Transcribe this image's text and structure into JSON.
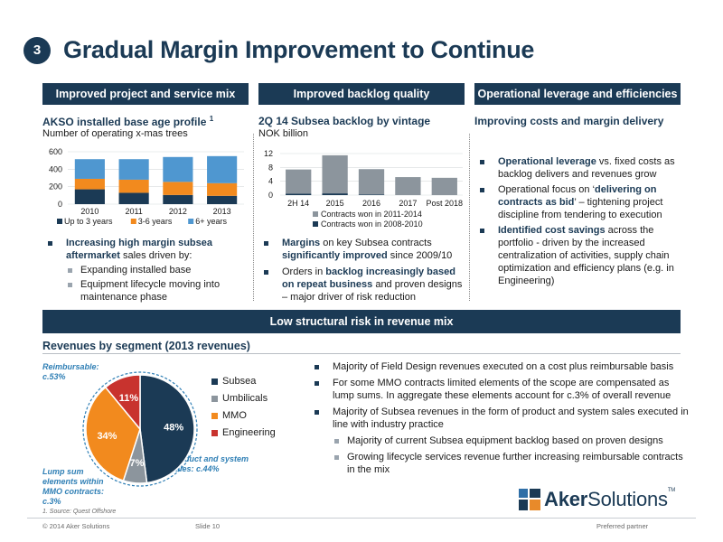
{
  "slide": {
    "number": "3",
    "title": "Gradual Margin Improvement to Continue",
    "slide_label": "Slide 10",
    "copyright": "© 2014 Aker Solutions",
    "tagline": "Preferred partner",
    "footnote": "1.     Source: Quest Offshore",
    "logo": {
      "bold": "Aker",
      "rest": "Solutions",
      "tm": "TM"
    }
  },
  "colors": {
    "navy": "#1b3a55",
    "grey": "#8c959d",
    "orange": "#f28a1e",
    "red": "#c8332e",
    "blue_text": "#2f7fb5"
  },
  "col1": {
    "header": "Improved project and service mix",
    "title": "AKSO installed base age profile",
    "title_sup": "1",
    "subtitle": "Number of operating x-mas trees",
    "bullets": [
      {
        "hl": "Increasing high margin subsea aftermarket",
        "text": " sales driven by:"
      }
    ],
    "sub_bullets": [
      "Expanding installed base",
      "Equipment lifecycle moving into maintenance phase"
    ]
  },
  "col2": {
    "header": "Improved backlog quality",
    "title": "2Q 14 Subsea backlog by vintage",
    "subtitle": "NOK billion",
    "bullet1_hl": "Margins",
    "bullet1_a": " on key Subsea contracts ",
    "bullet1_hl2": "significantly improved",
    "bullet1_b": " since 2009/10",
    "bullet2_a": "Orders in ",
    "bullet2_hl": "backlog increasingly based on repeat business",
    "bullet2_b": " and proven designs – major driver of risk reduction"
  },
  "col3": {
    "header": "Operational leverage and efficiencies",
    "title": "Improving costs and margin delivery",
    "b1_hl": "Operational leverage",
    "b1_text": " vs. fixed costs as backlog delivers and revenues grow",
    "b2_a": "Operational focus on ‘",
    "b2_hl": "delivering on contracts as bid",
    "b2_b": "’ – tightening project discipline from tendering to execution",
    "b3_hl": "Identified cost savings",
    "b3_text": " across the portfolio - driven by the increased centralization of activities, supply chain optimization and efficiency plans (e.g. in Engineering)"
  },
  "section2": {
    "header": "Low structural risk in revenue mix",
    "title": "Revenues by segment (2013 revenues)",
    "ann_reimb": "Reimbursable: c.53%",
    "ann_product": "Product and system sales: c.44%",
    "ann_lump": "Lump sum elements within MMO contracts: c.3%",
    "bullets": [
      "Majority of Field Design revenues executed on a cost plus reimbursable basis",
      "For some MMO contracts limited elements of the scope are compensated as lump sums. In aggregate these elements account for c.3% of overall revenue",
      "Majority of Subsea revenues in the form of product and system sales executed in line with industry practice"
    ],
    "sub_bullets": [
      "Majority of current Subsea equipment backlog based on proven designs",
      "Growing lifecycle services revenue further increasing reimbursable contracts in the mix"
    ]
  },
  "chart_data": [
    {
      "type": "bar",
      "stacked": true,
      "title": "AKSO installed base age profile",
      "categories": [
        "2010",
        "2011",
        "2012",
        "2013"
      ],
      "series": [
        {
          "name": "Up to 3 years",
          "color": "#1b3a55",
          "values": [
            170,
            130,
            105,
            95
          ]
        },
        {
          "name": "3-6 years",
          "color": "#f28a1e",
          "values": [
            120,
            150,
            150,
            145
          ]
        },
        {
          "name": "6+ years",
          "color": "#4f97d0",
          "values": [
            225,
            235,
            285,
            310
          ]
        }
      ],
      "yticks": [
        "0",
        "200",
        "400",
        "600"
      ],
      "ylim": [
        0,
        600
      ],
      "legend": "bottom"
    },
    {
      "type": "bar",
      "stacked": true,
      "title": "2Q 14 Subsea backlog by vintage",
      "categories": [
        "2H 14",
        "2015",
        "2016",
        "2017",
        "Post 2018"
      ],
      "series": [
        {
          "name": "Contracts won in 2011-2014",
          "color": "#8c959d",
          "values": [
            7.0,
            11.0,
            7.3,
            5.2,
            5.0
          ]
        },
        {
          "name": "Contracts won in 2008-2010",
          "color": "#1b3a55",
          "values": [
            0.4,
            0.5,
            0.2,
            0.0,
            0.0
          ]
        }
      ],
      "yticks": [
        "0",
        "4",
        "8",
        "12"
      ],
      "ylim": [
        0,
        12
      ],
      "legend": "bottom"
    },
    {
      "type": "pie",
      "title": "Revenues by segment (2013 revenues)",
      "slices": [
        {
          "name": "Subsea",
          "value": 48,
          "label": "48%",
          "color": "#1b3a55"
        },
        {
          "name": "Umbilicals",
          "value": 7,
          "label": "7%",
          "color": "#8c959d"
        },
        {
          "name": "MMO",
          "value": 34,
          "label": "34%",
          "color": "#f28a1e"
        },
        {
          "name": "Engineering",
          "value": 11,
          "label": "11%",
          "color": "#c8332e"
        }
      ],
      "legend": "right"
    }
  ]
}
